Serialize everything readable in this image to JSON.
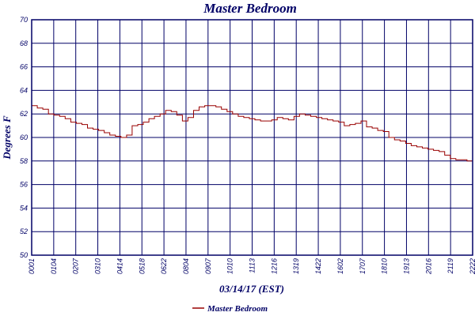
{
  "chart_data": {
    "type": "line",
    "title": "Master Bedroom",
    "xlabel": "03/14/17 (EST)",
    "ylabel": "Degrees F",
    "ylim": [
      50,
      70
    ],
    "yticks": [
      50,
      52,
      54,
      56,
      58,
      60,
      62,
      64,
      66,
      68,
      70
    ],
    "xticks": [
      "00:01",
      "01:04",
      "02:07",
      "03:10",
      "04:14",
      "05:18",
      "06:22",
      "08:04",
      "09:07",
      "10:10",
      "11:13",
      "12:16",
      "13:19",
      "14:22",
      "16:02",
      "17:07",
      "18:10",
      "19:13",
      "20:16",
      "21:19",
      "22:22"
    ],
    "grid": true,
    "legend_position": "bottom",
    "colors": {
      "series": "#990000",
      "grid": "#000066",
      "frame": "#000066",
      "text": "#000066"
    },
    "series": [
      {
        "name": "Master Bedroom",
        "values": [
          62.7,
          62.5,
          62.4,
          62.0,
          61.9,
          61.8,
          61.6,
          61.3,
          61.2,
          61.1,
          60.8,
          60.7,
          60.6,
          60.4,
          60.2,
          60.1,
          60.0,
          60.2,
          61.0,
          61.1,
          61.3,
          61.6,
          61.8,
          62.0,
          62.3,
          62.2,
          61.9,
          61.4,
          61.7,
          62.3,
          62.6,
          62.7,
          62.7,
          62.6,
          62.4,
          62.2,
          62.0,
          61.8,
          61.7,
          61.6,
          61.5,
          61.4,
          61.4,
          61.5,
          61.7,
          61.6,
          61.5,
          61.8,
          62.0,
          61.9,
          61.8,
          61.7,
          61.6,
          61.5,
          61.4,
          61.3,
          61.0,
          61.1,
          61.2,
          61.4,
          60.9,
          60.8,
          60.6,
          60.5,
          60.0,
          59.8,
          59.7,
          59.5,
          59.3,
          59.2,
          59.1,
          59.0,
          58.9,
          58.8,
          58.5,
          58.2,
          58.1,
          58.1,
          58.0,
          58.4
        ]
      }
    ]
  }
}
